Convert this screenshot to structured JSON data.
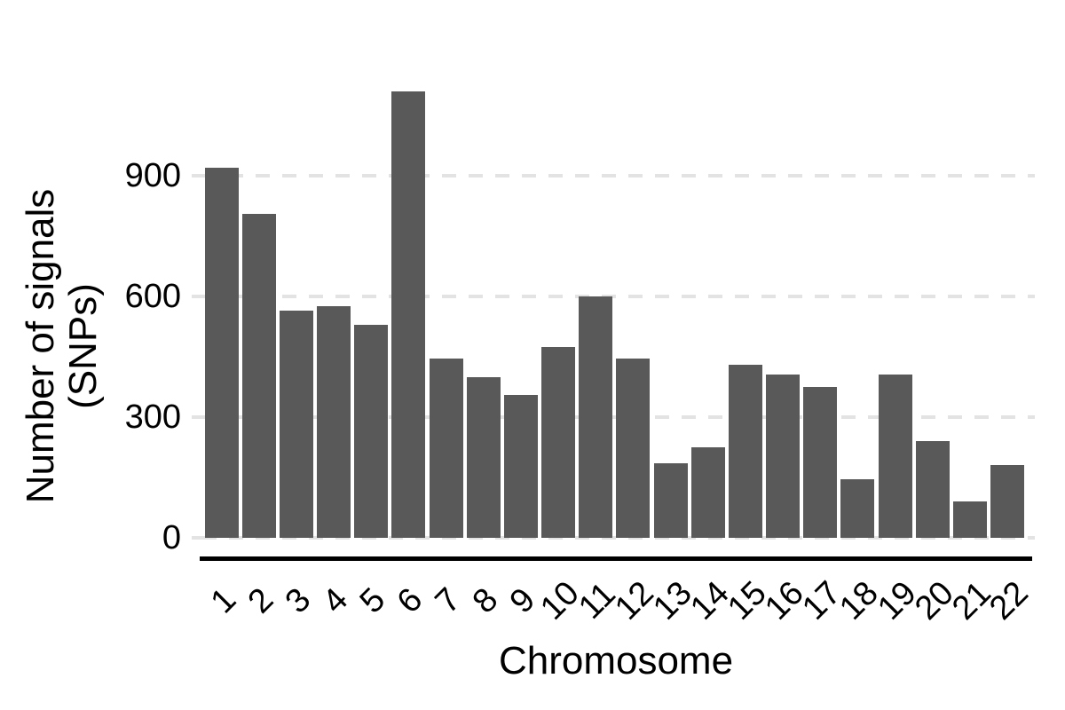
{
  "chart_data": {
    "type": "bar",
    "title": "",
    "xlabel": "Chromosome",
    "ylabel_lines": [
      "Number of signals",
      "(SNPs)"
    ],
    "categories": [
      "1",
      "2",
      "3",
      "4",
      "5",
      "6",
      "7",
      "8",
      "9",
      "10",
      "11",
      "12",
      "13",
      "14",
      "15",
      "16",
      "17",
      "18",
      "19",
      "20",
      "21",
      "22"
    ],
    "values": [
      920,
      805,
      565,
      575,
      530,
      1110,
      445,
      400,
      355,
      475,
      600,
      445,
      185,
      225,
      430,
      405,
      375,
      145,
      405,
      240,
      90,
      180
    ],
    "yticks": [
      0,
      300,
      600,
      900
    ],
    "ylim": [
      0,
      1150
    ],
    "grid": "horizontal dashed lines at y ticks, drawn behind bars",
    "legend": "none",
    "colors": {
      "bar": "#595959",
      "gridline": "#e3e3e3",
      "axis_line": "#000000",
      "text": "#000000",
      "background": "#ffffff"
    }
  }
}
